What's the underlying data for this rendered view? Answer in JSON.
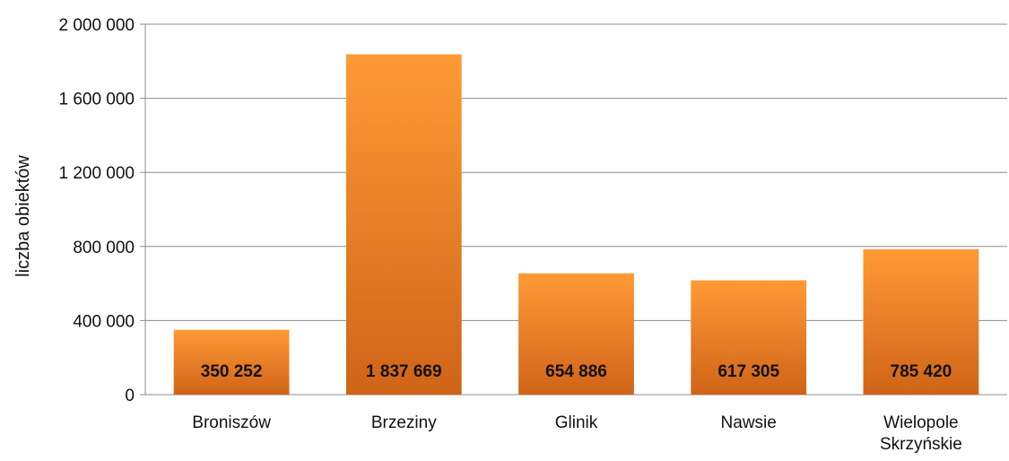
{
  "chart_data": {
    "type": "bar",
    "title": "",
    "xlabel": "",
    "ylabel": "liczba obiektów",
    "categories": [
      "Broniszów",
      "Brzeziny",
      "Glinik",
      "Nawsie",
      "Wielopole Skrzyńskie"
    ],
    "values": [
      350252,
      1837669,
      654886,
      617305,
      785420
    ],
    "value_labels": [
      "350 252",
      "1 837 669",
      "654 886",
      "617 305",
      "785 420"
    ],
    "yticks": [
      0,
      400000,
      800000,
      1200000,
      1600000,
      2000000
    ],
    "ytick_labels": [
      "0",
      "400 000",
      "800 000",
      "1 200 000",
      "1 600 000",
      "2 000 000"
    ],
    "ylim": [
      0,
      2000000
    ],
    "grid": true,
    "legend": "none",
    "colors": {
      "bar_top": "#ff9a36",
      "bar_bottom": "#cf6418",
      "grid": "#8c8c8c",
      "text": "#111111"
    }
  }
}
